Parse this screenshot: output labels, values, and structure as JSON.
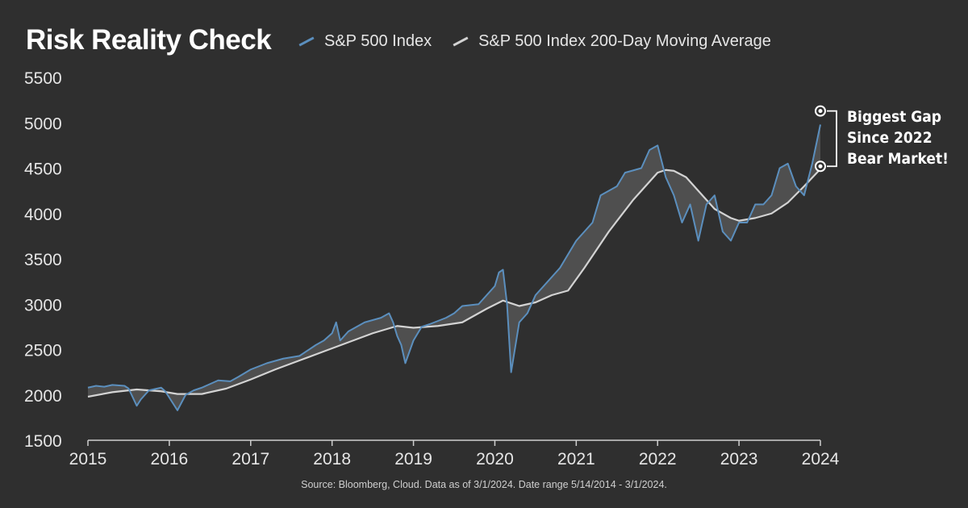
{
  "chart_data": {
    "type": "line",
    "title": "Risk Reality Check",
    "legend_position": "top",
    "ylim": [
      1500,
      5500
    ],
    "yticks": [
      1500,
      2000,
      2500,
      3000,
      3500,
      4000,
      4500,
      5000,
      5500
    ],
    "xlim": [
      2015,
      2024
    ],
    "xticks": [
      "2015",
      "2016",
      "2017",
      "2018",
      "2019",
      "2020",
      "2021",
      "2022",
      "2023",
      "2024"
    ],
    "grid": false,
    "colors": {
      "index": "#5b8fbe",
      "ma": "#d3d3d3",
      "fill": "#555555"
    },
    "series": [
      {
        "name": "S&P 500 Index",
        "x": [
          2015.0,
          2015.1,
          2015.2,
          2015.3,
          2015.45,
          2015.5,
          2015.6,
          2015.65,
          2015.75,
          2015.9,
          2015.95,
          2016.05,
          2016.1,
          2016.2,
          2016.3,
          2016.4,
          2016.5,
          2016.6,
          2016.75,
          2016.85,
          2017.0,
          2017.2,
          2017.4,
          2017.6,
          2017.8,
          2017.9,
          2018.0,
          2018.05,
          2018.1,
          2018.2,
          2018.4,
          2018.6,
          2018.7,
          2018.75,
          2018.8,
          2018.85,
          2018.9,
          2019.0,
          2019.1,
          2019.2,
          2019.4,
          2019.5,
          2019.6,
          2019.8,
          2020.0,
          2020.05,
          2020.1,
          2020.15,
          2020.2,
          2020.3,
          2020.4,
          2020.5,
          2020.6,
          2020.7,
          2020.8,
          2020.9,
          2021.0,
          2021.1,
          2021.2,
          2021.3,
          2021.5,
          2021.6,
          2021.8,
          2021.85,
          2021.9,
          2022.0,
          2022.1,
          2022.2,
          2022.3,
          2022.4,
          2022.5,
          2022.6,
          2022.7,
          2022.8,
          2022.9,
          2023.0,
          2023.1,
          2023.2,
          2023.3,
          2023.4,
          2023.5,
          2023.6,
          2023.7,
          2023.8,
          2023.9,
          2024.0
        ],
        "values": [
          2080,
          2100,
          2090,
          2110,
          2100,
          2070,
          1880,
          1950,
          2050,
          2080,
          2040,
          1900,
          1830,
          2000,
          2050,
          2080,
          2120,
          2160,
          2150,
          2200,
          2280,
          2350,
          2400,
          2430,
          2550,
          2600,
          2680,
          2800,
          2600,
          2700,
          2800,
          2850,
          2900,
          2800,
          2650,
          2550,
          2350,
          2600,
          2750,
          2780,
          2850,
          2900,
          2980,
          3000,
          3200,
          3350,
          3380,
          3000,
          2250,
          2800,
          2900,
          3100,
          3200,
          3300,
          3400,
          3550,
          3700,
          3800,
          3900,
          4200,
          4300,
          4450,
          4500,
          4600,
          4700,
          4750,
          4400,
          4200,
          3900,
          4100,
          3700,
          4100,
          4200,
          3800,
          3700,
          3900,
          3900,
          4100,
          4100,
          4200,
          4500,
          4550,
          4300,
          4200,
          4550,
          4980
        ]
      },
      {
        "name": "S&P 500 Index 200-Day Moving Average",
        "x": [
          2015.0,
          2015.3,
          2015.6,
          2015.9,
          2016.1,
          2016.4,
          2016.7,
          2017.0,
          2017.3,
          2017.6,
          2017.9,
          2018.2,
          2018.5,
          2018.8,
          2019.0,
          2019.3,
          2019.6,
          2019.9,
          2020.1,
          2020.3,
          2020.5,
          2020.7,
          2020.9,
          2021.1,
          2021.4,
          2021.7,
          2021.9,
          2022.0,
          2022.1,
          2022.2,
          2022.35,
          2022.5,
          2022.7,
          2022.9,
          2023.0,
          2023.2,
          2023.4,
          2023.6,
          2023.8,
          2024.0
        ],
        "values": [
          1980,
          2030,
          2060,
          2040,
          2010,
          2010,
          2070,
          2170,
          2280,
          2380,
          2480,
          2580,
          2680,
          2760,
          2740,
          2760,
          2800,
          2950,
          3040,
          2980,
          3020,
          3100,
          3150,
          3400,
          3800,
          4150,
          4350,
          4450,
          4480,
          4470,
          4400,
          4250,
          4050,
          3950,
          3920,
          3950,
          4000,
          4120,
          4300,
          4490
        ]
      }
    ],
    "annotation": {
      "lines": [
        "Biggest Gap",
        "Since 2022",
        "Bear Market!"
      ],
      "x": 2024.0,
      "y_top": 5130,
      "y_bottom": 4520
    },
    "source": "Source: Bloomberg, Cloud. Data as of 3/1/2024. Date range 5/14/2014 - 3/1/2024."
  }
}
